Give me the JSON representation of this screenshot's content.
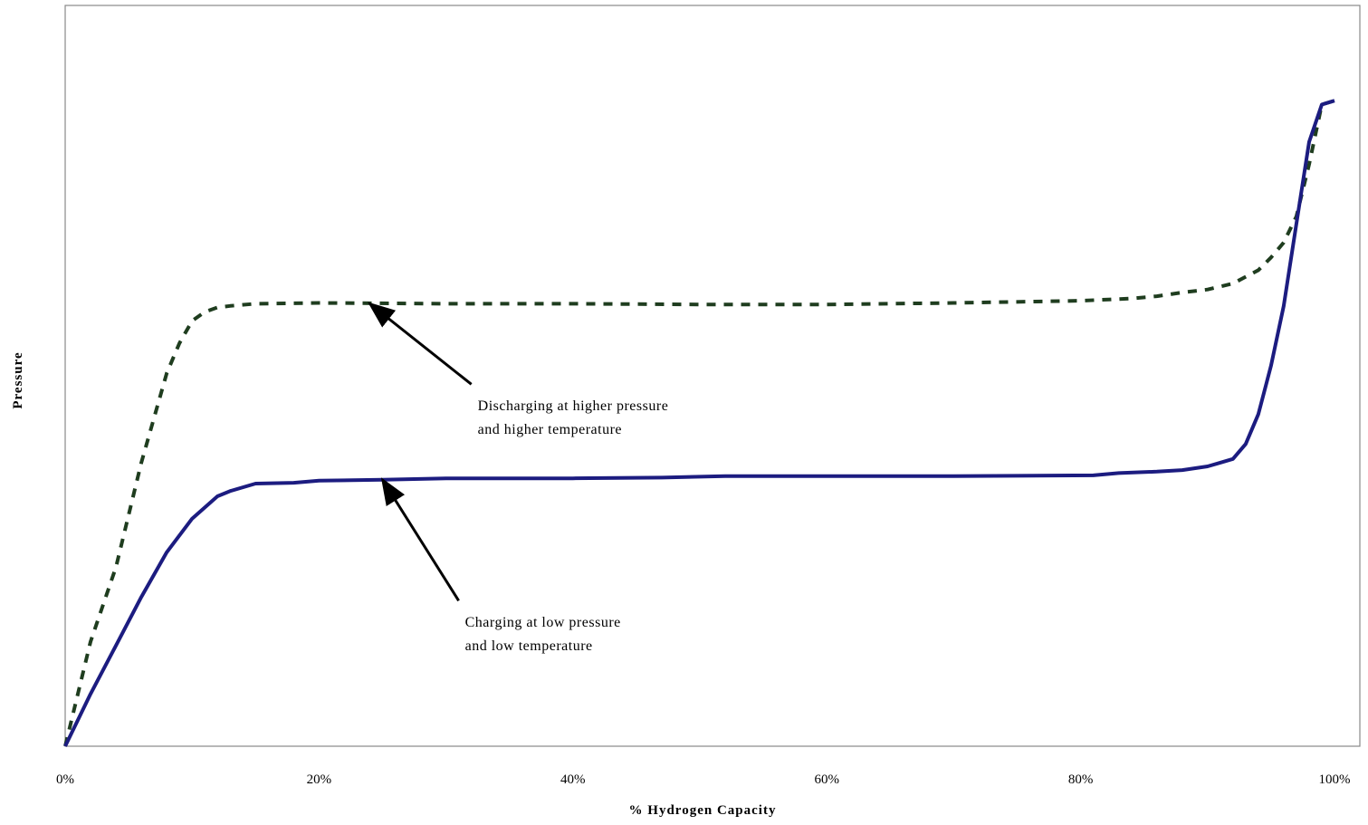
{
  "chart_data": {
    "type": "line",
    "title": "",
    "xlabel": "% Hydrogen Capacity",
    "ylabel": "Pressure",
    "xlim": [
      0,
      100
    ],
    "ylim": [
      0,
      100
    ],
    "x_ticks": [
      "0%",
      "20%",
      "40%",
      "60%",
      "80%",
      "100%"
    ],
    "x_tick_values": [
      0,
      20,
      40,
      60,
      80,
      100
    ],
    "grid": false,
    "legend": "none",
    "series": [
      {
        "style": "dashed",
        "color": "#1f3d1f",
        "x": [
          0,
          2,
          4,
          6,
          8,
          9,
          10,
          11,
          12,
          13,
          15,
          20,
          30,
          40,
          50,
          60,
          70,
          80,
          84,
          86,
          88,
          90,
          92,
          94,
          95,
          96,
          97,
          98,
          99,
          100
        ],
        "y": [
          0,
          14,
          24,
          38,
          50,
          54,
          57,
          58.2,
          58.8,
          59,
          59.3,
          59.4,
          59.3,
          59.3,
          59.2,
          59.2,
          59.4,
          59.7,
          60,
          60.3,
          60.8,
          61.2,
          62,
          63.8,
          65.5,
          67.5,
          71,
          78,
          86,
          86.5
        ]
      },
      {
        "style": "solid",
        "color": "#1c1c80",
        "x": [
          0,
          2,
          4,
          6,
          8,
          10,
          12,
          13,
          15,
          18,
          20,
          25,
          30,
          40,
          47,
          52,
          60,
          70,
          81,
          83,
          86,
          88,
          90,
          91,
          92,
          93,
          94,
          95,
          96,
          97,
          98,
          99,
          100
        ],
        "y": [
          0,
          7,
          13.5,
          20,
          26,
          30.5,
          33.5,
          34.2,
          35.2,
          35.3,
          35.6,
          35.7,
          35.9,
          35.9,
          36,
          36.2,
          36.2,
          36.2,
          36.3,
          36.6,
          36.8,
          37,
          37.5,
          38,
          38.5,
          40.5,
          44.5,
          51,
          59,
          70,
          81,
          86,
          86.5
        ]
      }
    ],
    "annotations": [
      {
        "lines": [
          "Discharging at higher pressure",
          "and higher temperature"
        ],
        "arrow_target": [
          24,
          59.3
        ],
        "arrow_tail": [
          32,
          48.5
        ],
        "text_pos": [
          32.5,
          45
        ]
      },
      {
        "lines": [
          "Charging at low pressure",
          " and low temperature"
        ],
        "arrow_target": [
          25,
          35.7
        ],
        "arrow_tail": [
          31,
          19.5
        ],
        "text_pos": [
          31.5,
          16
        ]
      }
    ]
  }
}
